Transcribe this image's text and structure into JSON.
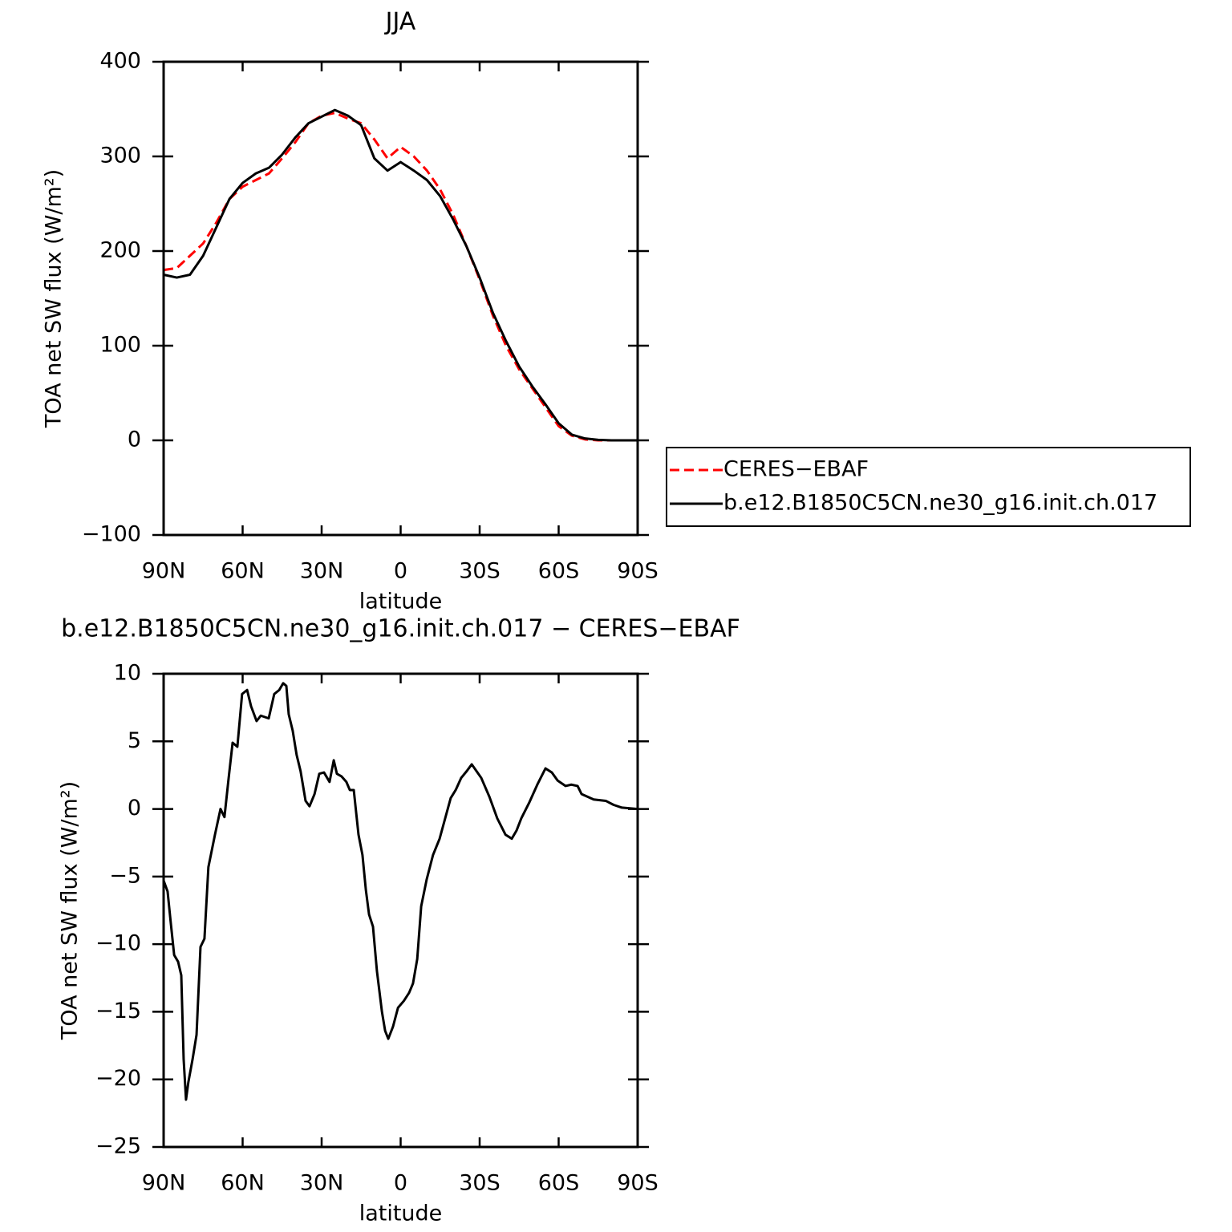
{
  "chart_data": [
    {
      "type": "line",
      "title": "JJA",
      "xlabel": "latitude",
      "ylabel": "TOA net SW flux (W/m²)",
      "x": [
        90,
        85,
        80,
        75,
        70,
        65,
        60,
        55,
        50,
        45,
        40,
        35,
        30,
        25,
        20,
        15,
        10,
        5,
        0,
        -5,
        -10,
        -15,
        -20,
        -25,
        -30,
        -35,
        -40,
        -45,
        -50,
        -55,
        -60,
        -65,
        -70,
        -75,
        -80,
        -85,
        -90
      ],
      "series": [
        {
          "name": "CERES−EBAF",
          "color": "#ff0000",
          "linestyle": "dashed",
          "values": [
            180,
            182,
            195,
            208,
            230,
            255,
            268,
            275,
            282,
            298,
            315,
            335,
            343,
            346,
            340,
            335,
            318,
            298,
            310,
            300,
            285,
            265,
            238,
            205,
            170,
            132,
            100,
            75,
            55,
            35,
            15,
            5,
            1,
            0,
            0,
            0,
            0
          ]
        },
        {
          "name": "b.e12.B1850C5CN.ne30_g16.init.ch.017",
          "color": "#000000",
          "linestyle": "solid",
          "values": [
            175,
            172,
            175,
            195,
            225,
            255,
            272,
            282,
            288,
            302,
            320,
            335,
            342,
            349,
            343,
            333,
            298,
            285,
            294,
            285,
            275,
            258,
            233,
            205,
            172,
            135,
            105,
            78,
            57,
            38,
            18,
            6,
            2,
            0.5,
            0,
            0,
            0
          ]
        }
      ],
      "xlim": [
        90,
        -90
      ],
      "xticks": [
        {
          "value": 90,
          "label": "90N"
        },
        {
          "value": 60,
          "label": "60N"
        },
        {
          "value": 30,
          "label": "30N"
        },
        0,
        {
          "value": -30,
          "label": "30S"
        },
        {
          "value": -60,
          "label": "60S"
        },
        {
          "value": -90,
          "label": "90S"
        }
      ],
      "ylim": [
        -100,
        400
      ],
      "yticks": [
        {
          "value": -100,
          "label": "−100"
        },
        0,
        100,
        200,
        300,
        400
      ],
      "legend": "right"
    },
    {
      "type": "line",
      "title": "b.e12.B1850C5CN.ne30_g16.init.ch.017 − CERES−EBAF",
      "xlabel": "latitude",
      "ylabel": "TOA net SW flux (W/m²)",
      "x": [
        90,
        88.5,
        87.3,
        86,
        84.5,
        83.3,
        82.4,
        81.5,
        80.6,
        79,
        77.5,
        76,
        74.5,
        73,
        70.5,
        68.4,
        66.9,
        65.3,
        63.8,
        62,
        60.2,
        58.3,
        56.8,
        54.7,
        53.1,
        50.1,
        48,
        46.1,
        44.6,
        43.4,
        42.5,
        41,
        39.5,
        38,
        36.1,
        34.6,
        32.7,
        30.9,
        29.1,
        27,
        25.4,
        24.2,
        22.4,
        20.6,
        19.3,
        17.8,
        16,
        14.5,
        13.2,
        12,
        10.5,
        9,
        7.1,
        5.9,
        4.7,
        2.9,
        1,
        -1.2,
        -3.2,
        -4.7,
        -6.3,
        -7.8,
        -9.9,
        -12.3,
        -14.8,
        -16.9,
        -19,
        -20.9,
        -23,
        -25.1,
        -27,
        -28.8,
        -30.6,
        -33.7,
        -36.7,
        -39.8,
        -42.2,
        -44,
        -45.8,
        -48.9,
        -51.9,
        -55,
        -57.4,
        -59.6,
        -62.6,
        -64.8,
        -67.2,
        -68.7,
        -73.3,
        -77.9,
        -80.9,
        -84,
        -90
      ],
      "series": [
        {
          "color": "#000000",
          "linestyle": "solid",
          "values": [
            -5.3,
            -6.1,
            -8.4,
            -10.8,
            -11.3,
            -12.3,
            -18.5,
            -21.5,
            -20.2,
            -18.5,
            -16.7,
            -10.2,
            -9.6,
            -4.3,
            -1.9,
            0,
            -0.6,
            2.3,
            4.9,
            4.6,
            8.5,
            8.8,
            7.6,
            6.5,
            6.9,
            6.7,
            8.5,
            8.8,
            9.3,
            9.1,
            7,
            5.8,
            4,
            2.8,
            0.6,
            0.2,
            1.1,
            2.6,
            2.7,
            2,
            3.6,
            2.6,
            2.4,
            2,
            1.4,
            1.4,
            -1.9,
            -3.4,
            -6,
            -7.8,
            -8.7,
            -12,
            -15,
            -16.4,
            -17,
            -16.1,
            -14.7,
            -14.2,
            -13.6,
            -12.9,
            -11.1,
            -7.2,
            -5.2,
            -3.4,
            -2.2,
            -0.7,
            0.8,
            1.4,
            2.3,
            2.8,
            3.3,
            2.8,
            2.3,
            0.9,
            -0.7,
            -1.9,
            -2.2,
            -1.6,
            -0.7,
            0.5,
            1.8,
            3,
            2.7,
            2.1,
            1.7,
            1.8,
            1.7,
            1.1,
            0.7,
            0.6,
            0.3,
            0.1,
            0
          ]
        }
      ],
      "xlim": [
        90,
        -90
      ],
      "xticks": [
        {
          "value": 90,
          "label": "90N"
        },
        {
          "value": 60,
          "label": "60N"
        },
        {
          "value": 30,
          "label": "30N"
        },
        0,
        {
          "value": -30,
          "label": "30S"
        },
        {
          "value": -60,
          "label": "60S"
        },
        {
          "value": -90,
          "label": "90S"
        }
      ],
      "ylim": [
        -25,
        10
      ],
      "yticks": [
        {
          "value": -25,
          "label": "−25"
        },
        {
          "value": -20,
          "label": "−20"
        },
        {
          "value": -15,
          "label": "−15"
        },
        {
          "value": -10,
          "label": "−10"
        },
        {
          "value": -5,
          "label": "−5"
        },
        0,
        5,
        10
      ]
    }
  ]
}
